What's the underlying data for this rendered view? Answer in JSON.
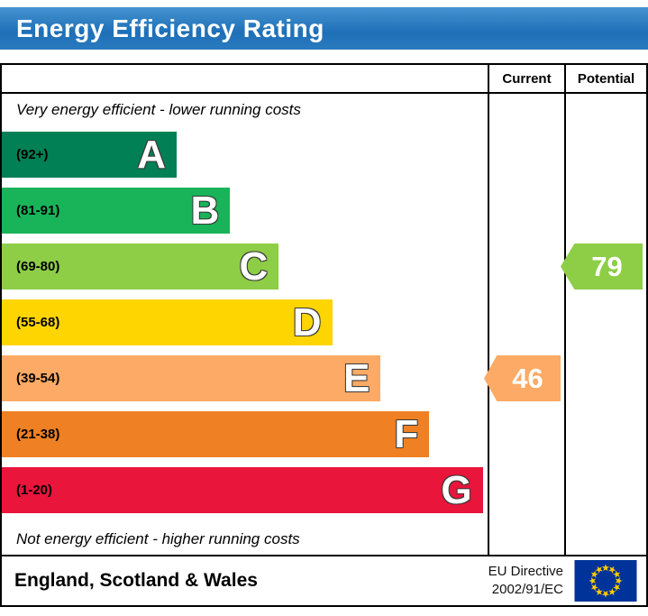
{
  "header": {
    "title": "Energy Efficiency Rating"
  },
  "table": {
    "columns": {
      "current": "Current",
      "potential": "Potential"
    },
    "top_caption": "Very energy efficient - lower running costs",
    "bottom_caption": "Not energy efficient - higher running costs",
    "bands": [
      {
        "letter": "A",
        "range": "(92+)",
        "color": "#008054",
        "width_pct": 36
      },
      {
        "letter": "B",
        "range": "(81-91)",
        "color": "#19b459",
        "width_pct": 47
      },
      {
        "letter": "C",
        "range": "(69-80)",
        "color": "#8dce46",
        "width_pct": 57
      },
      {
        "letter": "D",
        "range": "(55-68)",
        "color": "#ffd500",
        "width_pct": 68
      },
      {
        "letter": "E",
        "range": "(39-54)",
        "color": "#fcaa65",
        "width_pct": 78
      },
      {
        "letter": "F",
        "range": "(21-38)",
        "color": "#ef8023",
        "width_pct": 88
      },
      {
        "letter": "G",
        "range": "(1-20)",
        "color": "#e9153b",
        "width_pct": 99
      }
    ],
    "current": {
      "value": "46",
      "band_index": 4,
      "color": "#fcaa65"
    },
    "potential": {
      "value": "79",
      "band_index": 2,
      "color": "#8dce46"
    }
  },
  "footer": {
    "region": "England, Scotland & Wales",
    "directive_line1": "EU Directive",
    "directive_line2": "2002/91/EC",
    "flag_blue": "#003399",
    "flag_star": "#ffcc00"
  },
  "chart_data": {
    "type": "bar",
    "title": "Energy Efficiency Rating",
    "categories": [
      "A",
      "B",
      "C",
      "D",
      "E",
      "F",
      "G"
    ],
    "ranges": [
      "92+",
      "81-91",
      "69-80",
      "55-68",
      "39-54",
      "21-38",
      "1-20"
    ],
    "values": [
      36,
      47,
      57,
      68,
      78,
      88,
      99
    ],
    "current": 46,
    "current_band": "E",
    "potential": 79,
    "potential_band": "C",
    "top_caption": "Very energy efficient - lower running costs",
    "bottom_caption": "Not energy efficient - higher running costs",
    "footer": "England, Scotland & Wales",
    "directive": "EU Directive 2002/91/EC"
  }
}
